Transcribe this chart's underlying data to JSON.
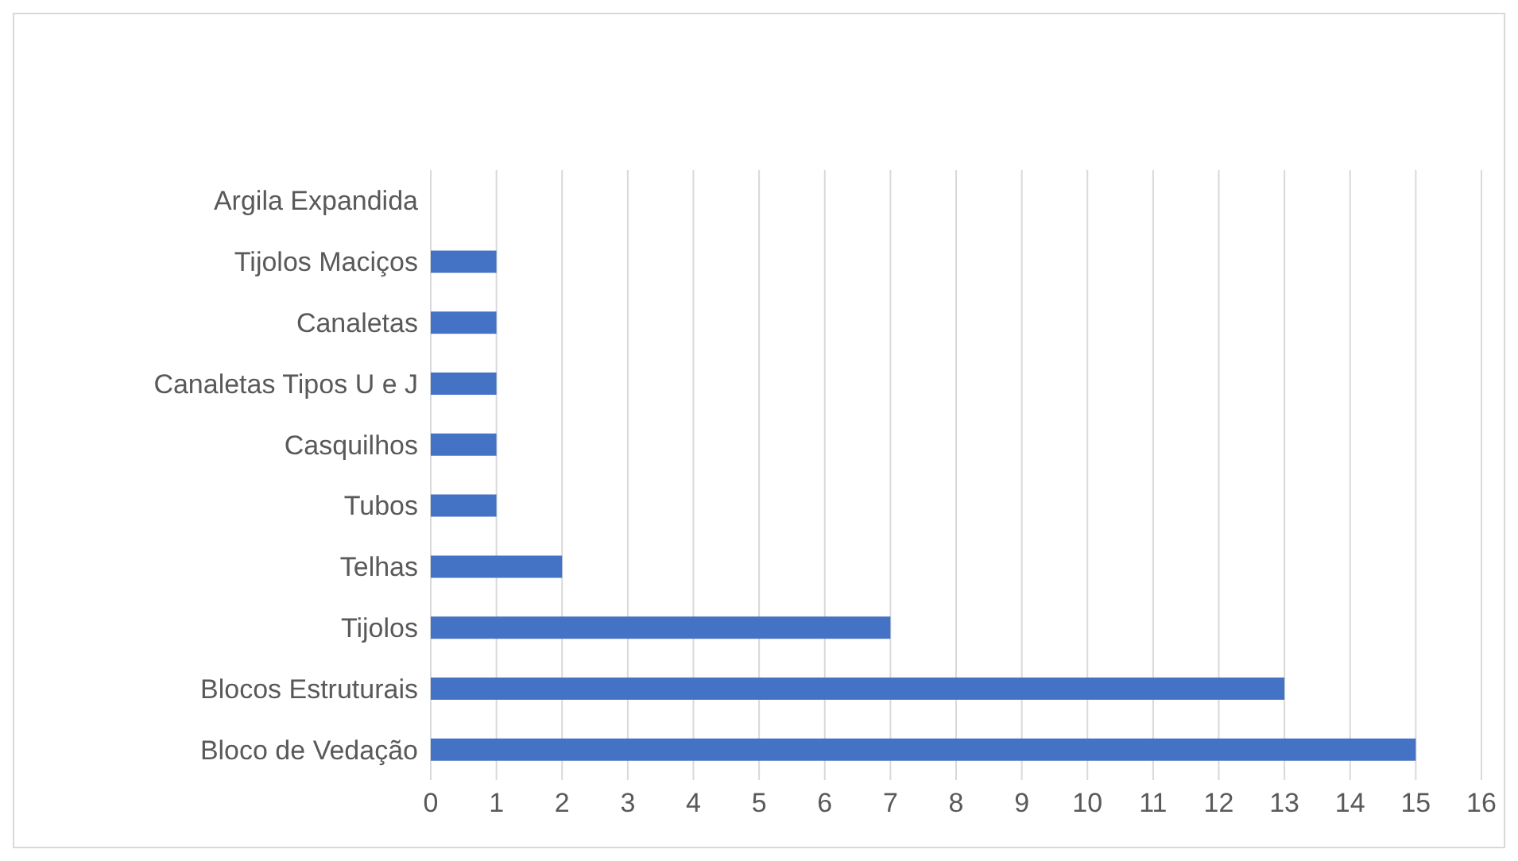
{
  "chart_data": {
    "type": "bar",
    "orientation": "horizontal",
    "categories": [
      "Argila Expandida",
      "Tijolos Maciços",
      "Canaletas",
      "Canaletas Tipos U e J",
      "Casquilhos",
      "Tubos",
      "Telhas",
      "Tijolos",
      "Blocos Estruturais",
      "Bloco de Vedação"
    ],
    "values": [
      0,
      1,
      1,
      1,
      1,
      1,
      2,
      7,
      13,
      15
    ],
    "color": "#4472c4",
    "xlim": [
      0,
      16
    ],
    "xticks": [
      0,
      1,
      2,
      3,
      4,
      5,
      6,
      7,
      8,
      9,
      10,
      11,
      12,
      13,
      14,
      15,
      16
    ],
    "grid": "x",
    "legend": false
  }
}
